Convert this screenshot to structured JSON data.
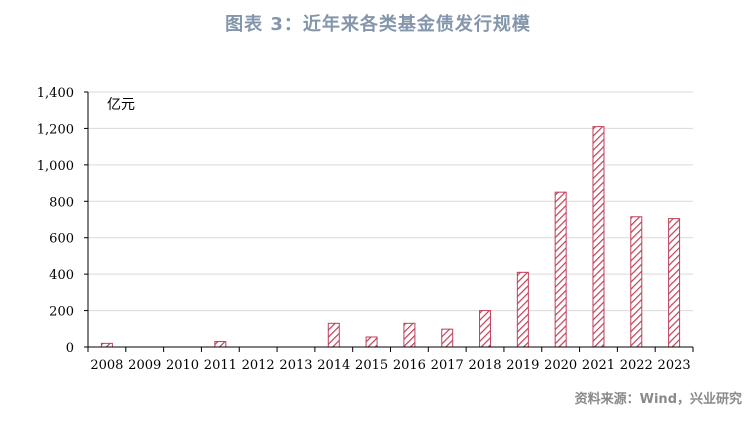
{
  "title": "图表 3：近年来各类基金债发行规模",
  "source": "资料来源：Wind，兴业研究",
  "colors": {
    "bar_stroke": "#c0405a",
    "hatch": "#c0405a",
    "title": "#8496ab",
    "source": "#8a8a8a"
  },
  "chart_data": {
    "type": "bar",
    "title": "图表 3：近年来各类基金债发行规模",
    "unit_label": "亿元",
    "xlabel": "",
    "ylabel": "",
    "ylim": [
      0,
      1400
    ],
    "yticks": [
      0,
      200,
      400,
      600,
      800,
      1000,
      1200,
      1400
    ],
    "ytick_labels": [
      "0",
      "200",
      "400",
      "600",
      "800",
      "1,000",
      "1,200",
      "1,400"
    ],
    "grid": true,
    "legend": "none",
    "categories": [
      "2008",
      "2009",
      "2010",
      "2011",
      "2012",
      "2013",
      "2014",
      "2015",
      "2016",
      "2017",
      "2018",
      "2019",
      "2020",
      "2021",
      "2022",
      "2023"
    ],
    "values": [
      20,
      0,
      0,
      30,
      0,
      0,
      130,
      55,
      130,
      98,
      200,
      410,
      850,
      1210,
      715,
      705
    ]
  }
}
